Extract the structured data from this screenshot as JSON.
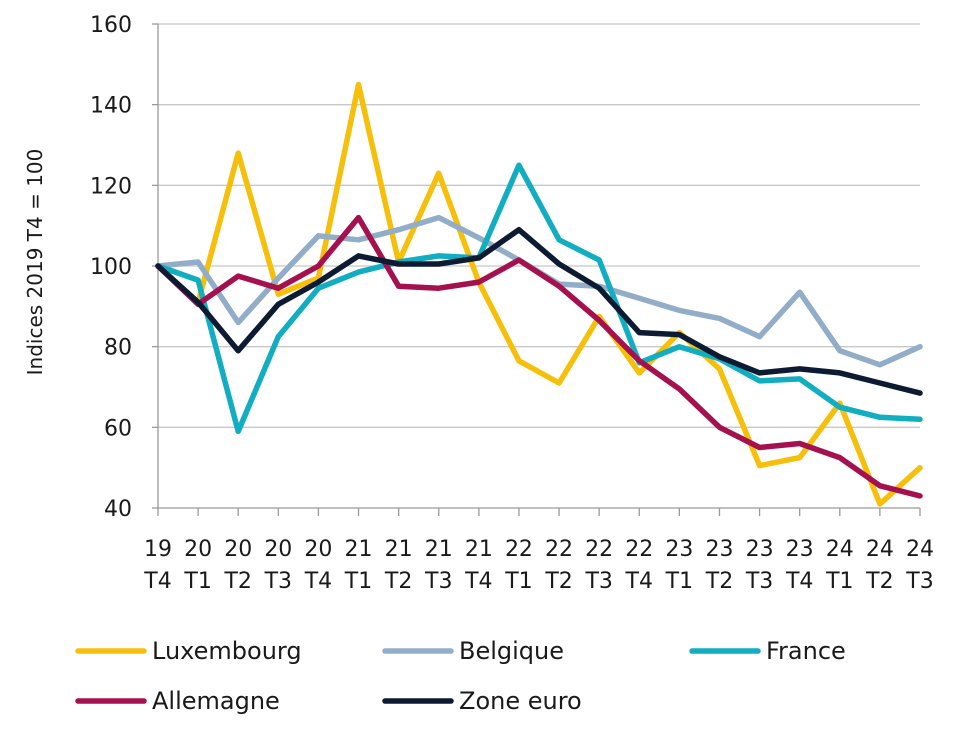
{
  "chart_data": {
    "type": "line",
    "title": "",
    "xlabel": "",
    "ylabel": "Indices 2019 T4 = 100",
    "ylim": [
      40,
      160
    ],
    "yticks": [
      40,
      60,
      80,
      100,
      120,
      140,
      160
    ],
    "grid": "horizontal",
    "legend_position": "bottom",
    "categories": [
      {
        "year": "19",
        "quarter": "T4"
      },
      {
        "year": "20",
        "quarter": "T1"
      },
      {
        "year": "20",
        "quarter": "T2"
      },
      {
        "year": "20",
        "quarter": "T3"
      },
      {
        "year": "20",
        "quarter": "T4"
      },
      {
        "year": "21",
        "quarter": "T1"
      },
      {
        "year": "21",
        "quarter": "T2"
      },
      {
        "year": "21",
        "quarter": "T3"
      },
      {
        "year": "21",
        "quarter": "T4"
      },
      {
        "year": "22",
        "quarter": "T1"
      },
      {
        "year": "22",
        "quarter": "T2"
      },
      {
        "year": "22",
        "quarter": "T3"
      },
      {
        "year": "22",
        "quarter": "T4"
      },
      {
        "year": "23",
        "quarter": "T1"
      },
      {
        "year": "23",
        "quarter": "T2"
      },
      {
        "year": "23",
        "quarter": "T3"
      },
      {
        "year": "23",
        "quarter": "T4"
      },
      {
        "year": "24",
        "quarter": "T1"
      },
      {
        "year": "24",
        "quarter": "T2"
      },
      {
        "year": "24",
        "quarter": "T3"
      }
    ],
    "series": [
      {
        "name": "Luxembourg",
        "color": "#F5BF0A",
        "values": [
          100,
          91,
          128,
          93,
          97,
          145,
          101,
          123,
          96,
          76.5,
          71,
          87.5,
          73.5,
          83.5,
          74.5,
          50.5,
          52.5,
          66,
          41,
          50
        ]
      },
      {
        "name": "Belgique",
        "color": "#91ADC8",
        "values": [
          100,
          101,
          86,
          97,
          107.5,
          106.5,
          109,
          112,
          107,
          101.5,
          95.5,
          95,
          92,
          89,
          87,
          82.5,
          93.5,
          79,
          75.5,
          80
        ]
      },
      {
        "name": "France",
        "color": "#11ADC0",
        "values": [
          100,
          96.5,
          59,
          82.5,
          94.5,
          98.5,
          101,
          102.5,
          102,
          125,
          106.5,
          101.5,
          76,
          80,
          77,
          71.5,
          72,
          65,
          62.5,
          62
        ]
      },
      {
        "name": "Allemagne",
        "color": "#A5104E",
        "values": [
          100,
          90.5,
          97.5,
          94.5,
          100,
          112,
          95,
          94.5,
          96,
          101.5,
          95,
          86.5,
          76.5,
          69.5,
          60,
          55,
          56,
          52.5,
          45.5,
          43
        ]
      },
      {
        "name": "Zone euro",
        "color": "#0D1B32",
        "values": [
          100,
          91,
          79,
          90.5,
          96,
          102.5,
          100.5,
          100.5,
          102,
          109,
          100.5,
          94.5,
          83.5,
          83,
          77.5,
          73.5,
          74.5,
          73.5,
          71,
          68.5
        ]
      }
    ]
  }
}
